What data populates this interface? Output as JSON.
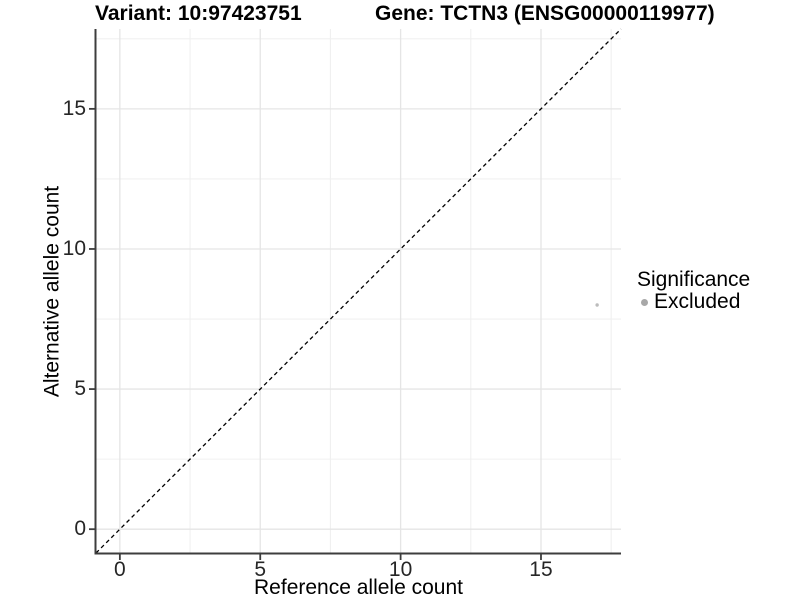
{
  "header": {
    "variant_title": "Variant: 10:97423751",
    "gene_title": "Gene: TCTN3 (ENSG00000119977)"
  },
  "legend": {
    "title": "Significance",
    "position": "right",
    "items": [
      {
        "label": "Excluded",
        "color": "#a8a8a8"
      }
    ]
  },
  "colors": {
    "background": "#ffffff",
    "grid_major": "#e5e5e5",
    "grid_minor": "#f0f0f0",
    "axis": "#3d3d3d",
    "tick_label": "#262626",
    "point": "#bcbcbc",
    "reference_line": "#000000"
  },
  "chart_data": {
    "type": "scatter",
    "title": "Variant: 10:97423751   Gene: TCTN3 (ENSG00000119977)",
    "xlabel": "Reference allele count",
    "ylabel": "Alternative allele count",
    "xlim": [
      -0.85,
      17.85
    ],
    "ylim": [
      -0.85,
      17.85
    ],
    "x_ticks": [
      0,
      5,
      10,
      15
    ],
    "y_ticks": [
      0,
      5,
      10,
      15
    ],
    "x_minor_ticks": [
      2.5,
      7.5,
      12.5,
      17.5
    ],
    "y_minor_ticks": [
      2.5,
      7.5,
      12.5,
      17.5
    ],
    "grid": true,
    "legend_position": "right",
    "series": [
      {
        "name": "Excluded",
        "color": "#bcbcbc",
        "points": [
          [
            17,
            8
          ]
        ]
      }
    ],
    "reference_line": {
      "kind": "identity",
      "linestyle": "dashed",
      "color": "#000000"
    }
  }
}
